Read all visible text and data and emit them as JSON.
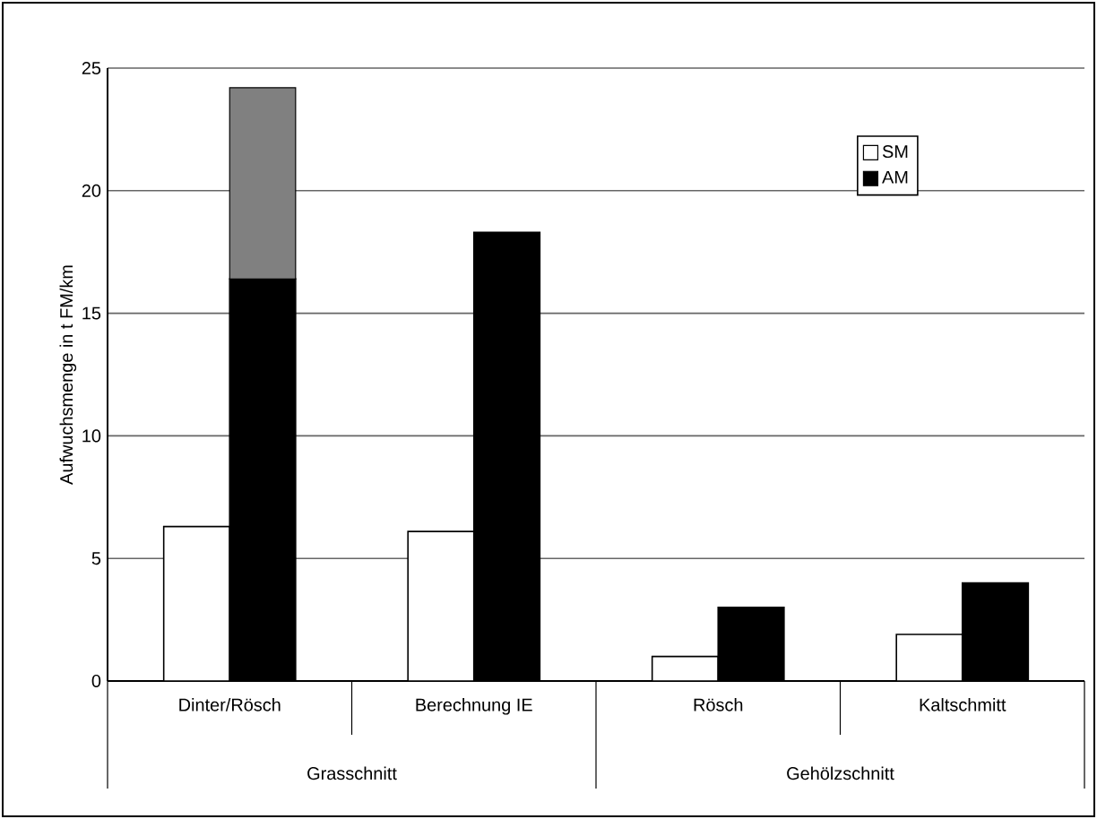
{
  "chart_data": {
    "type": "bar",
    "ylabel": "Aufwuchsmenge in t FM/km",
    "categories": [
      "Dinter/Rösch",
      "Berechnung IE",
      "Rösch",
      "Kaltschmitt"
    ],
    "series": [
      {
        "name": "SM",
        "color": "#ffffff",
        "values": [
          6.3,
          6.1,
          1.0,
          1.9
        ]
      },
      {
        "name": "AM",
        "color": "#000000",
        "values": [
          16.4,
          18.3,
          3.0,
          4.0
        ]
      },
      {
        "color": "#808080",
        "values": [
          7.8,
          null,
          null,
          null
        ],
        "base": [
          16.4,
          null,
          null,
          null
        ]
      }
    ],
    "ylim": [
      0,
      25
    ],
    "yticks": [
      0,
      5,
      10,
      15,
      20,
      25
    ],
    "grid": "y",
    "legend": "top right",
    "annotations": [
      "Grasschnitt",
      "Gehölzschnitt"
    ]
  }
}
